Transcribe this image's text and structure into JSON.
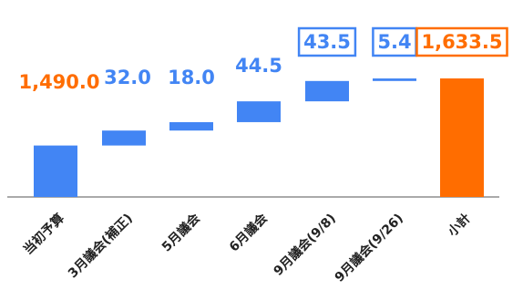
{
  "chart_data": {
    "type": "bar",
    "subtype": "waterfall",
    "categories": [
      "当初予算",
      "3月議会(補正)",
      "5月議会",
      "6月議会",
      "9月議会(9/8)",
      "9月議会(9/26)",
      "小計"
    ],
    "values": [
      1490.0,
      32.0,
      18.0,
      44.5,
      43.5,
      5.4,
      1633.5
    ],
    "value_labels": [
      "1,490.0",
      "32.0",
      "18.0",
      "44.5",
      "43.5",
      "5.4",
      "1,633.5"
    ],
    "bar_kinds": [
      "total",
      "increase",
      "increase",
      "increase",
      "increase",
      "increase",
      "total"
    ],
    "boxed_labels": [
      false,
      false,
      false,
      false,
      true,
      true,
      true
    ],
    "title": "",
    "xlabel": "",
    "ylabel": "",
    "grid": false,
    "legend": "none",
    "colors": {
      "base_total": "#4285F4",
      "increase": "#4285F4",
      "final_total": "#FF6D00",
      "label_base": "#FF6D00",
      "label_increase": "#4285F4",
      "label_final": "#FF6D00",
      "axis": "#777777"
    }
  }
}
